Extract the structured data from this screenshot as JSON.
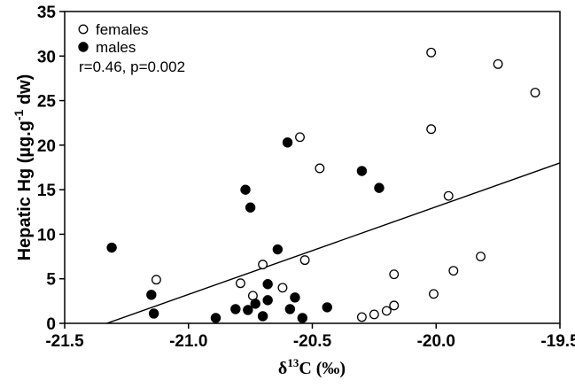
{
  "chart_data": {
    "type": "scatter",
    "title": "",
    "xlabel": "δ13C (‰)",
    "xlabel_parts": {
      "symbol": "δ",
      "superscript": "13",
      "main": "C (‰)"
    },
    "ylabel": "Hepatic Hg (µg.g-1 dw)",
    "ylabel_parts": {
      "main": "Hepatic Hg (µg.g",
      "superscript": "-1",
      "suffix": " dw)"
    },
    "xlim": [
      -21.5,
      -19.5
    ],
    "ylim": [
      0,
      35
    ],
    "x_ticks": [
      "-21.5",
      "-21.0",
      "-20.5",
      "-20.0",
      "-19.5"
    ],
    "x_tick_values": [
      -21.5,
      -21.0,
      -20.5,
      -20.0,
      -19.5
    ],
    "y_ticks": [
      "0",
      "5",
      "10",
      "15",
      "20",
      "25",
      "30",
      "35"
    ],
    "y_tick_values": [
      0,
      5,
      10,
      15,
      20,
      25,
      30,
      35
    ],
    "grid": false,
    "legend_position": "top-left",
    "annotation": "r=0.46, p=0.002",
    "series": [
      {
        "name": "females",
        "marker": "open-circle",
        "points": [
          [
            -21.13,
            4.9
          ],
          [
            -20.79,
            4.5
          ],
          [
            -20.74,
            3.1
          ],
          [
            -20.7,
            6.6
          ],
          [
            -20.62,
            4.0
          ],
          [
            -20.55,
            20.9
          ],
          [
            -20.53,
            7.1
          ],
          [
            -20.47,
            17.4
          ],
          [
            -20.3,
            0.7
          ],
          [
            -20.25,
            1.0
          ],
          [
            -20.2,
            1.4
          ],
          [
            -20.17,
            5.5
          ],
          [
            -20.17,
            2.0
          ],
          [
            -20.02,
            30.4
          ],
          [
            -20.02,
            21.8
          ],
          [
            -20.01,
            3.3
          ],
          [
            -19.95,
            14.3
          ],
          [
            -19.93,
            5.9
          ],
          [
            -19.82,
            7.5
          ],
          [
            -19.75,
            29.1
          ],
          [
            -19.6,
            25.9
          ]
        ]
      },
      {
        "name": "males",
        "marker": "filled-circle",
        "points": [
          [
            -21.31,
            8.5
          ],
          [
            -21.15,
            3.2
          ],
          [
            -21.14,
            1.1
          ],
          [
            -20.89,
            0.6
          ],
          [
            -20.81,
            1.6
          ],
          [
            -20.77,
            15.0
          ],
          [
            -20.75,
            13.0
          ],
          [
            -20.76,
            1.5
          ],
          [
            -20.73,
            2.2
          ],
          [
            -20.7,
            0.8
          ],
          [
            -20.68,
            2.6
          ],
          [
            -20.68,
            4.4
          ],
          [
            -20.64,
            8.3
          ],
          [
            -20.6,
            20.3
          ],
          [
            -20.59,
            1.6
          ],
          [
            -20.57,
            2.9
          ],
          [
            -20.54,
            0.6
          ],
          [
            -20.44,
            1.8
          ],
          [
            -20.3,
            17.1
          ],
          [
            -20.23,
            15.2
          ]
        ]
      }
    ],
    "regression_line": {
      "x": [
        -21.33,
        -19.5
      ],
      "y": [
        0,
        18.0
      ]
    },
    "colors": {
      "axis": "#000000",
      "marker": "#000000",
      "background": "#ffffff"
    }
  }
}
